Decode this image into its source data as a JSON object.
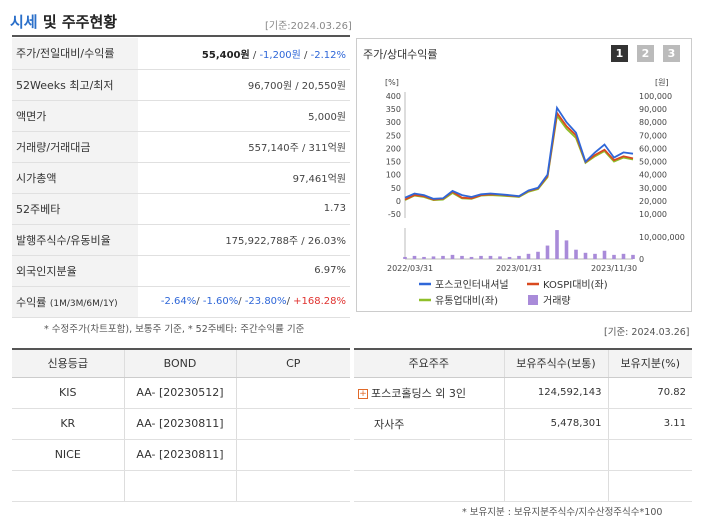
{
  "header": {
    "title_main": "시세",
    "title_rest": " 및 주주현황",
    "base_date": "[기준:2024.03.26]"
  },
  "info": {
    "price_label": "주가/전일대비/수익률",
    "price": "55,400원",
    "change": "-1,200원",
    "change_rate": "-2.12%",
    "w52_label": "52Weeks 최고/최저",
    "w52_value": "96,700원 / 20,550원",
    "par_label": "액면가",
    "par_value": "5,000원",
    "volume_label": "거래량/거래대금",
    "volume_value": "557,140주 / 311억원",
    "cap_label": "시가총액",
    "cap_value": "97,461억원",
    "beta_label": "52주베타",
    "beta_value": "1.73",
    "shares_label": "발행주식수/유동비율",
    "shares_value": "175,922,788주 / 26.03%",
    "foreign_label": "외국인지분율",
    "foreign_value": "6.97%",
    "return_label": "수익률",
    "return_period": "(1M/3M/6M/1Y)",
    "r1": "-2.64%",
    "r2": "-1.60%",
    "r3": "-23.80%",
    "r4": "+168.28%"
  },
  "footnote_left": "* 수정주가(차트포함), 보통주 기준, * 52주베타: 주간수익률 기준",
  "footnote_right_date": "[기준: 2024.03.26]",
  "chart": {
    "title": "주가/상대수익률",
    "pages": [
      "1",
      "2",
      "3"
    ],
    "unit_left": "[%]",
    "unit_right": "[원]",
    "legend": [
      "포스코인터내셔널",
      "KOSPI대비(좌)",
      "유통업대비(좌)",
      "거래량"
    ],
    "colors": {
      "stock": "#2f67d8",
      "kospi": "#d9491f",
      "retail": "#8fbf2a",
      "volume": "#a98bd9"
    }
  },
  "chart_data": {
    "type": "line",
    "x_ticks": [
      "2022/03/31",
      "2023/01/31",
      "2023/11/30"
    ],
    "y_left_ticks": [
      "400",
      "350",
      "300",
      "250",
      "200",
      "150",
      "100",
      "50",
      "0",
      "-50"
    ],
    "y_right_ticks": [
      "100,000",
      "90,000",
      "80,000",
      "70,000",
      "60,000",
      "50,000",
      "40,000",
      "30,000",
      "20,000",
      "10,000"
    ],
    "ylim_left": [
      -50,
      400
    ],
    "volume_ticks": [
      "10,000,000",
      "0"
    ],
    "series": [
      {
        "name": "포스코인터내셔널",
        "values": [
          12,
          28,
          22,
          8,
          10,
          38,
          22,
          15,
          25,
          28,
          25,
          22,
          18,
          40,
          50,
          100,
          355,
          300,
          260,
          150,
          185,
          215,
          165,
          185,
          180
        ]
      },
      {
        "name": "KOSPI대비(좌)",
        "values": [
          5,
          22,
          18,
          5,
          8,
          35,
          12,
          10,
          22,
          25,
          24,
          20,
          17,
          38,
          48,
          95,
          335,
          285,
          250,
          148,
          175,
          195,
          155,
          170,
          162
        ]
      },
      {
        "name": "유통업대비(좌)",
        "values": [
          3,
          20,
          15,
          3,
          5,
          30,
          10,
          8,
          20,
          22,
          20,
          18,
          15,
          35,
          45,
          90,
          325,
          275,
          240,
          145,
          170,
          190,
          150,
          165,
          158
        ]
      }
    ],
    "volume": [
      0.2,
      0.3,
      0.2,
      0.25,
      0.3,
      0.4,
      0.3,
      0.2,
      0.3,
      0.3,
      0.25,
      0.2,
      0.3,
      0.5,
      0.7,
      1.3,
      2.8,
      1.8,
      0.9,
      0.6,
      0.5,
      0.8,
      0.4,
      0.5,
      0.4
    ]
  },
  "credit": {
    "headers": [
      "신용등급",
      "BOND",
      "CP"
    ],
    "rows": [
      {
        "agency": "KIS",
        "bond": "AA-  [20230512]",
        "cp": ""
      },
      {
        "agency": "KR",
        "bond": "AA-  [20230811]",
        "cp": ""
      },
      {
        "agency": "NICE",
        "bond": "AA-  [20230811]",
        "cp": ""
      },
      {
        "agency": "",
        "bond": "",
        "cp": ""
      }
    ]
  },
  "holders": {
    "headers": [
      "주요주주",
      "보유주식수(보통)",
      "보유지분(%)"
    ],
    "rows": [
      {
        "name": "포스코홀딩스 외 3인",
        "shares": "124,592,143",
        "pct": "70.82"
      },
      {
        "name": "자사주",
        "shares": "5,478,301",
        "pct": "3.11"
      },
      {
        "name": "",
        "shares": "",
        "pct": ""
      },
      {
        "name": "",
        "shares": "",
        "pct": ""
      }
    ],
    "footnote": "* 보유지분 : 보유지분주식수/지수산정주식수*100"
  }
}
